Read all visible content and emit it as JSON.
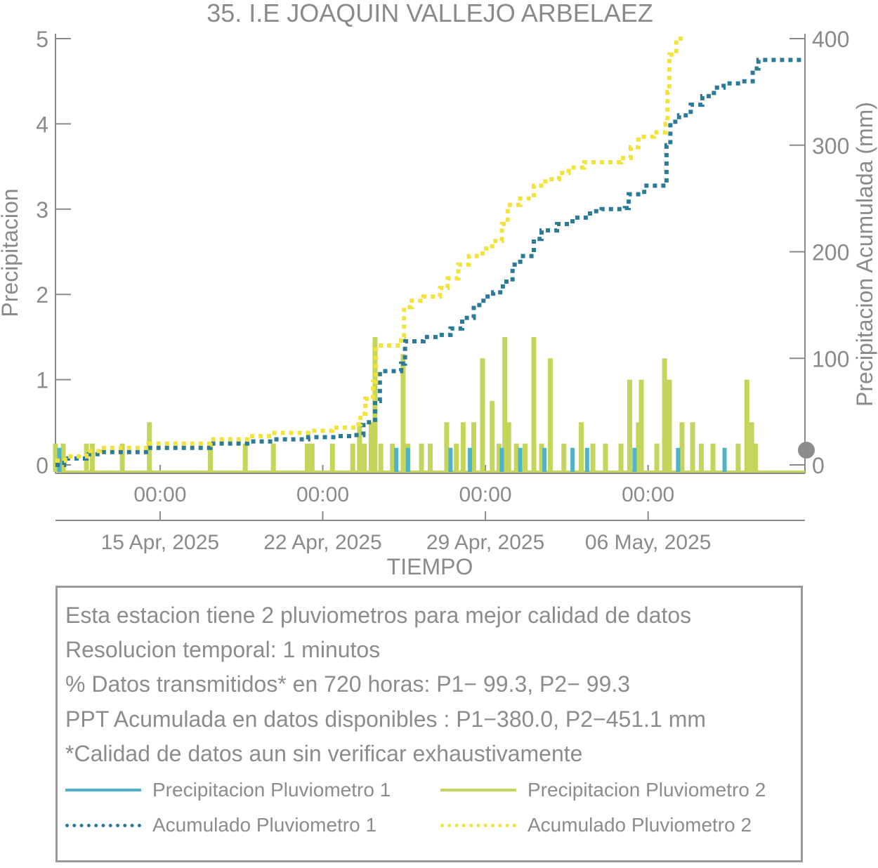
{
  "chart_data": {
    "type": "bar+line",
    "title": "35. I.E JOAQUIN VALLEJO ARBELAEZ",
    "xlabel": "TIEMPO",
    "ylabel_left": "Precipitacion",
    "ylabel_right": "Precipitacion Acumulada (mm)",
    "xlim_days": [
      "2025-04-10T12:00",
      "2025-05-12T18:00"
    ],
    "ylim_left": [
      0,
      5
    ],
    "ylim_right": [
      0,
      400
    ],
    "yticks_left": [
      "0",
      "1",
      "2",
      "3",
      "4",
      "5"
    ],
    "yticks_right": [
      "0",
      "100",
      "200",
      "300",
      "400"
    ],
    "xticks_time": [
      "00:00",
      "00:00",
      "00:00",
      "00:00"
    ],
    "xticks_time_dates": [
      "2025-04-15",
      "2025-04-22",
      "2025-04-29",
      "2025-05-06"
    ],
    "xticks_date": [
      "15 Apr, 2025",
      "22 Apr, 2025",
      "29 Apr, 2025",
      "06 May, 2025"
    ],
    "colors": {
      "p1": "#4fb3c8",
      "p2": "#c5d45a",
      "acc1": "#2a7a98",
      "acc2": "#f2e33a",
      "axis": "#8a8a8a",
      "marker": "#8c8c8c"
    },
    "series": [
      {
        "name": "Precipitacion Pluviometro 2",
        "type": "bar",
        "axis": "left",
        "points": [
          [
            "2025-04-10T12:00",
            0.25
          ],
          [
            "2025-04-10T20:00",
            0.25
          ],
          [
            "2025-04-11T20:00",
            0.25
          ],
          [
            "2025-04-12T02:00",
            0.25
          ],
          [
            "2025-04-13T09:00",
            0.25
          ],
          [
            "2025-04-14T13:00",
            0.5
          ],
          [
            "2025-04-17T04:00",
            0.25
          ],
          [
            "2025-04-18T16:00",
            0.25
          ],
          [
            "2025-04-19T21:00",
            0.25
          ],
          [
            "2025-04-21T08:00",
            0.25
          ],
          [
            "2025-04-21T13:00",
            0.25
          ],
          [
            "2025-04-22T10:00",
            0.25
          ],
          [
            "2025-04-23T07:00",
            0.25
          ],
          [
            "2025-04-23T14:00",
            0.5
          ],
          [
            "2025-04-23T19:00",
            0.25
          ],
          [
            "2025-04-24T02:00",
            0.5
          ],
          [
            "2025-04-24T06:00",
            1.5
          ],
          [
            "2025-04-24T12:00",
            0.25
          ],
          [
            "2025-04-25T00:00",
            0.25
          ],
          [
            "2025-04-25T11:00",
            1.3
          ],
          [
            "2025-04-25T16:00",
            0.25
          ],
          [
            "2025-04-26T06:00",
            0.25
          ],
          [
            "2025-04-26T15:00",
            0.25
          ],
          [
            "2025-04-27T08:00",
            0.5
          ],
          [
            "2025-04-27T18:00",
            0.25
          ],
          [
            "2025-04-28T01:00",
            0.5
          ],
          [
            "2025-04-28T12:00",
            0.5
          ],
          [
            "2025-04-28T21:00",
            1.25
          ],
          [
            "2025-04-29T07:00",
            0.75
          ],
          [
            "2025-04-29T14:00",
            0.25
          ],
          [
            "2025-04-29T20:00",
            1.5
          ],
          [
            "2025-04-30T00:00",
            0.5
          ],
          [
            "2025-04-30T08:00",
            0.25
          ],
          [
            "2025-04-30T17:00",
            0.25
          ],
          [
            "2025-05-01T02:00",
            1.5
          ],
          [
            "2025-05-01T10:00",
            0.25
          ],
          [
            "2025-05-01T19:00",
            1.25
          ],
          [
            "2025-05-02T09:00",
            0.25
          ],
          [
            "2025-05-03T03:00",
            0.5
          ],
          [
            "2025-05-03T15:00",
            0.25
          ],
          [
            "2025-05-04T04:00",
            0.25
          ],
          [
            "2025-05-04T20:00",
            0.25
          ],
          [
            "2025-05-05T05:00",
            1.0
          ],
          [
            "2025-05-05T14:00",
            0.5
          ],
          [
            "2025-05-05T17:00",
            1.0
          ],
          [
            "2025-05-06T09:00",
            0.25
          ],
          [
            "2025-05-06T17:00",
            1.25
          ],
          [
            "2025-05-06T22:00",
            1.0
          ],
          [
            "2025-05-07T11:00",
            0.5
          ],
          [
            "2025-05-07T22:00",
            0.5
          ],
          [
            "2025-05-08T07:00",
            0.25
          ],
          [
            "2025-05-08T19:00",
            0.25
          ],
          [
            "2025-05-09T21:00",
            0.25
          ],
          [
            "2025-05-10T06:00",
            1.0
          ],
          [
            "2025-05-10T11:00",
            0.5
          ],
          [
            "2025-05-10T15:00",
            0.25
          ]
        ]
      },
      {
        "name": "Precipitacion Pluviometro 1",
        "type": "bar",
        "axis": "left",
        "points": [
          [
            "2025-04-10T16:00",
            0.2
          ],
          [
            "2025-04-25T04:00",
            0.2
          ],
          [
            "2025-04-25T16:00",
            0.2
          ],
          [
            "2025-04-27T12:00",
            0.2
          ],
          [
            "2025-04-28T08:00",
            0.2
          ],
          [
            "2025-04-29T17:00",
            0.2
          ],
          [
            "2025-04-30T12:00",
            0.2
          ],
          [
            "2025-05-01T13:00",
            0.2
          ],
          [
            "2025-05-02T18:00",
            0.2
          ],
          [
            "2025-05-03T09:00",
            0.2
          ],
          [
            "2025-05-05T10:00",
            0.2
          ],
          [
            "2025-05-07T07:00",
            0.2
          ],
          [
            "2025-05-09T07:00",
            0.2
          ]
        ]
      },
      {
        "name": "Acumulado Pluviometro 1",
        "type": "step",
        "axis": "right",
        "points": [
          [
            "2025-04-10T12:00",
            0
          ],
          [
            "2025-04-10T21:00",
            6
          ],
          [
            "2025-04-11T20:00",
            10
          ],
          [
            "2025-04-12T12:00",
            12
          ],
          [
            "2025-04-14T12:00",
            16
          ],
          [
            "2025-04-17T04:00",
            20
          ],
          [
            "2025-04-18T18:00",
            22
          ],
          [
            "2025-04-19T22:00",
            24
          ],
          [
            "2025-04-21T09:00",
            26
          ],
          [
            "2025-04-22T14:00",
            27
          ],
          [
            "2025-04-23T06:00",
            28
          ],
          [
            "2025-04-23T18:00",
            40
          ],
          [
            "2025-04-24T06:00",
            60
          ],
          [
            "2025-04-24T11:00",
            88
          ],
          [
            "2025-04-25T09:00",
            95
          ],
          [
            "2025-04-25T13:00",
            116
          ],
          [
            "2025-04-26T08:00",
            120
          ],
          [
            "2025-04-27T00:00",
            122
          ],
          [
            "2025-04-27T12:00",
            128
          ],
          [
            "2025-04-28T00:00",
            138
          ],
          [
            "2025-04-28T12:00",
            150
          ],
          [
            "2025-04-28T22:00",
            158
          ],
          [
            "2025-04-29T08:00",
            162
          ],
          [
            "2025-04-29T18:00",
            172
          ],
          [
            "2025-04-30T04:00",
            188
          ],
          [
            "2025-04-30T12:00",
            196
          ],
          [
            "2025-05-01T02:00",
            212
          ],
          [
            "2025-05-01T10:00",
            220
          ],
          [
            "2025-05-02T02:00",
            226
          ],
          [
            "2025-05-02T18:00",
            232
          ],
          [
            "2025-05-03T12:00",
            238
          ],
          [
            "2025-05-04T00:00",
            240
          ],
          [
            "2025-05-05T00:00",
            241
          ],
          [
            "2025-05-05T04:00",
            254
          ],
          [
            "2025-05-05T20:00",
            262
          ],
          [
            "2025-05-06T19:00",
            300
          ],
          [
            "2025-05-06T23:00",
            322
          ],
          [
            "2025-05-07T08:00",
            328
          ],
          [
            "2025-05-07T20:00",
            338
          ],
          [
            "2025-05-08T08:00",
            346
          ],
          [
            "2025-05-08T20:00",
            354
          ],
          [
            "2025-05-09T06:00",
            358
          ],
          [
            "2025-05-10T00:00",
            360
          ],
          [
            "2025-05-10T12:00",
            372
          ],
          [
            "2025-05-10T18:00",
            380
          ],
          [
            "2025-05-12T18:00",
            380
          ]
        ]
      },
      {
        "name": "Acumulado Pluviometro 2",
        "type": "step",
        "axis": "right",
        "points": [
          [
            "2025-04-10T12:00",
            4
          ],
          [
            "2025-04-10T22:00",
            8
          ],
          [
            "2025-04-11T20:00",
            13
          ],
          [
            "2025-04-12T10:00",
            16
          ],
          [
            "2025-04-14T12:00",
            20
          ],
          [
            "2025-04-17T04:00",
            24
          ],
          [
            "2025-04-18T18:00",
            27
          ],
          [
            "2025-04-19T22:00",
            30
          ],
          [
            "2025-04-21T09:00",
            32
          ],
          [
            "2025-04-22T10:00",
            35
          ],
          [
            "2025-04-23T10:00",
            38
          ],
          [
            "2025-04-23T15:00",
            48
          ],
          [
            "2025-04-23T20:00",
            62
          ],
          [
            "2025-04-24T04:00",
            78
          ],
          [
            "2025-04-24T07:00",
            112
          ],
          [
            "2025-04-25T09:00",
            120
          ],
          [
            "2025-04-25T12:00",
            148
          ],
          [
            "2025-04-25T20:00",
            154
          ],
          [
            "2025-04-26T08:00",
            158
          ],
          [
            "2025-04-27T01:00",
            166
          ],
          [
            "2025-04-27T09:00",
            175
          ],
          [
            "2025-04-27T20:00",
            188
          ],
          [
            "2025-04-28T07:00",
            196
          ],
          [
            "2025-04-28T21:00",
            203
          ],
          [
            "2025-04-29T07:00",
            210
          ],
          [
            "2025-04-29T17:00",
            226
          ],
          [
            "2025-04-29T23:00",
            244
          ],
          [
            "2025-04-30T12:00",
            250
          ],
          [
            "2025-05-01T02:00",
            262
          ],
          [
            "2025-05-01T14:00",
            268
          ],
          [
            "2025-05-02T04:00",
            274
          ],
          [
            "2025-05-02T14:00",
            279
          ],
          [
            "2025-05-03T06:00",
            284
          ],
          [
            "2025-05-04T20:00",
            288
          ],
          [
            "2025-05-05T06:00",
            298
          ],
          [
            "2025-05-05T14:00",
            308
          ],
          [
            "2025-05-06T06:00",
            312
          ],
          [
            "2025-05-06T18:00",
            320
          ],
          [
            "2025-05-06T20:00",
            350
          ],
          [
            "2025-05-06T22:00",
            385
          ],
          [
            "2025-05-07T05:00",
            400
          ],
          [
            "2025-05-07T12:00",
            403
          ]
        ]
      }
    ]
  },
  "info": {
    "lines": [
      "Esta estacion tiene 2 pluviometros para mejor calidad de datos",
      "Resolucion temporal: 1 minutos",
      "% Datos transmitidos* en 720 horas: P1− 99.3, P2− 99.3",
      "PPT Acumulada en datos disponibles : P1−380.0, P2−451.1 mm",
      "*Calidad de datos aun sin verificar exhaustivamente"
    ]
  },
  "legend": {
    "items": [
      "Precipitacion Pluviometro 1",
      "Precipitacion Pluviometro 2",
      "Acumulado Pluviometro 1",
      "Acumulado Pluviometro 2"
    ]
  }
}
